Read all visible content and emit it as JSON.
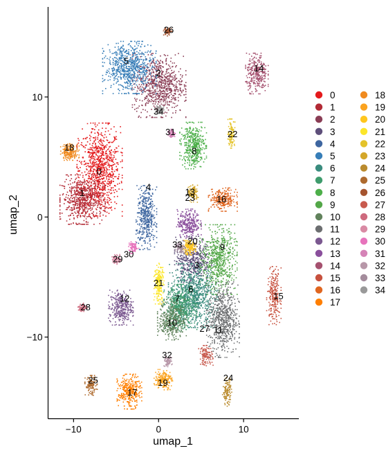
{
  "chart_data": {
    "type": "scatter",
    "title": "",
    "xlabel": "umap_1",
    "ylabel": "umap_2",
    "xlim": [
      -13,
      16.5
    ],
    "ylim": [
      -16.8,
      17.5
    ],
    "xticks": [
      -10,
      0,
      10
    ],
    "yticks": [
      -10,
      0,
      10
    ],
    "xtick_labels": [
      "−10",
      "0",
      "10"
    ],
    "ytick_labels": [
      "−10",
      "0",
      "10"
    ],
    "grid": false,
    "legend_position": "right",
    "clusters": [
      {
        "name": "0",
        "color": "#E41A1C",
        "center": [
          -7,
          4
        ],
        "spread": [
          2.2,
          3.2
        ],
        "n": 900
      },
      {
        "name": "1",
        "color": "#B22A35",
        "center": [
          -9,
          1.5
        ],
        "spread": [
          2.2,
          1.7
        ],
        "n": 600
      },
      {
        "name": "2",
        "color": "#8A3D55",
        "center": [
          0,
          11
        ],
        "spread": [
          2.6,
          2.2
        ],
        "n": 750
      },
      {
        "name": "3",
        "color": "#5E4F7A",
        "center": [
          4,
          -3.5
        ],
        "spread": [
          1.8,
          1.6
        ],
        "n": 450
      },
      {
        "name": "4",
        "color": "#3E66A0",
        "center": [
          -1.5,
          0
        ],
        "spread": [
          1.0,
          2.2
        ],
        "n": 420
      },
      {
        "name": "5",
        "color": "#377EB8",
        "center": [
          -3.5,
          12.5
        ],
        "spread": [
          2.6,
          1.8
        ],
        "n": 700
      },
      {
        "name": "6",
        "color": "#3A8C7E",
        "center": [
          4,
          -6.5
        ],
        "spread": [
          2.4,
          2.2
        ],
        "n": 850
      },
      {
        "name": "7",
        "color": "#3F9C6D",
        "center": [
          2.5,
          -7.5
        ],
        "spread": [
          1.6,
          1.6
        ],
        "n": 450
      },
      {
        "name": "8",
        "color": "#4DAF4A",
        "center": [
          4,
          6
        ],
        "spread": [
          1.3,
          1.6
        ],
        "n": 420
      },
      {
        "name": "9",
        "color": "#53A748",
        "center": [
          7,
          -3.5
        ],
        "spread": [
          1.8,
          2.4
        ],
        "n": 600
      },
      {
        "name": "10",
        "color": "#61825C",
        "center": [
          1.5,
          -8.5
        ],
        "spread": [
          1.4,
          1.4
        ],
        "n": 380
      },
      {
        "name": "11",
        "color": "#6C6E70",
        "center": [
          7.5,
          -8.5
        ],
        "spread": [
          1.6,
          2.6
        ],
        "n": 650
      },
      {
        "name": "12",
        "color": "#7B5890",
        "center": [
          -4.5,
          -7.5
        ],
        "spread": [
          1.2,
          1.2
        ],
        "n": 330
      },
      {
        "name": "13",
        "color": "#8A4F9C",
        "center": [
          3.5,
          -0.5
        ],
        "spread": [
          1.2,
          1.0
        ],
        "n": 280
      },
      {
        "name": "14",
        "color": "#A5516F",
        "center": [
          11.5,
          12
        ],
        "spread": [
          1.1,
          1.4
        ],
        "n": 300
      },
      {
        "name": "15",
        "color": "#C7513E",
        "center": [
          13.5,
          -6.5
        ],
        "spread": [
          0.7,
          2.0
        ],
        "n": 230
      },
      {
        "name": "16",
        "color": "#E06620",
        "center": [
          7.5,
          1.5
        ],
        "spread": [
          1.4,
          0.8
        ],
        "n": 250
      },
      {
        "name": "17",
        "color": "#FF7F00",
        "center": [
          -3.5,
          -14.5
        ],
        "spread": [
          1.2,
          1.2
        ],
        "n": 320
      },
      {
        "name": "18",
        "color": "#F08B20",
        "center": [
          -10.5,
          5.5
        ],
        "spread": [
          0.9,
          0.6
        ],
        "n": 200
      },
      {
        "name": "19",
        "color": "#FBA31F",
        "center": [
          0.5,
          -13.5
        ],
        "spread": [
          0.9,
          0.7
        ],
        "n": 180
      },
      {
        "name": "20",
        "color": "#FFC61E",
        "center": [
          3.5,
          -2.5
        ],
        "spread": [
          0.7,
          0.5
        ],
        "n": 150
      },
      {
        "name": "21",
        "color": "#FCE62A",
        "center": [
          0,
          -5.5
        ],
        "spread": [
          0.5,
          1.4
        ],
        "n": 200
      },
      {
        "name": "22",
        "color": "#E4C32A",
        "center": [
          8.5,
          7
        ],
        "spread": [
          0.35,
          1.0
        ],
        "n": 120
      },
      {
        "name": "23",
        "color": "#D4A72A",
        "center": [
          4,
          2
        ],
        "spread": [
          0.5,
          0.6
        ],
        "n": 110
      },
      {
        "name": "24",
        "color": "#BA8B2E",
        "center": [
          8,
          -14.5
        ],
        "spread": [
          0.45,
          1.0
        ],
        "n": 120
      },
      {
        "name": "25",
        "color": "#AE6A2E",
        "center": [
          -8,
          -14
        ],
        "spread": [
          0.6,
          0.7
        ],
        "n": 110
      },
      {
        "name": "26",
        "color": "#A5542F",
        "center": [
          1,
          15.5
        ],
        "spread": [
          0.4,
          0.3
        ],
        "n": 70
      },
      {
        "name": "27",
        "color": "#C85A4E",
        "center": [
          5.5,
          -11.5
        ],
        "spread": [
          0.7,
          0.7
        ],
        "n": 120
      },
      {
        "name": "28",
        "color": "#CE6A7E",
        "center": [
          -9,
          -7.5
        ],
        "spread": [
          0.45,
          0.3
        ],
        "n": 70
      },
      {
        "name": "29",
        "color": "#D98AA4",
        "center": [
          -5,
          -3.5
        ],
        "spread": [
          0.45,
          0.35
        ],
        "n": 70
      },
      {
        "name": "30",
        "color": "#E773BC",
        "center": [
          -3,
          -2.5
        ],
        "spread": [
          0.5,
          0.4
        ],
        "n": 80
      },
      {
        "name": "31",
        "color": "#D583B7",
        "center": [
          1.5,
          7
        ],
        "spread": [
          0.35,
          0.3
        ],
        "n": 60
      },
      {
        "name": "32",
        "color": "#B797A8",
        "center": [
          1,
          -12
        ],
        "spread": [
          0.45,
          0.35
        ],
        "n": 70
      },
      {
        "name": "33",
        "color": "#A48C9C",
        "center": [
          2.5,
          -2.5
        ],
        "spread": [
          0.5,
          0.4
        ],
        "n": 70
      },
      {
        "name": "34",
        "color": "#999999",
        "center": [
          0,
          9
        ],
        "spread": [
          0.45,
          0.35
        ],
        "n": 70
      }
    ],
    "point_labels": [
      {
        "text": "0",
        "x": -7,
        "y": 3.8
      },
      {
        "text": "1",
        "x": -9,
        "y": 2
      },
      {
        "text": "2",
        "x": 0,
        "y": 12
      },
      {
        "text": "3",
        "x": 4.5,
        "y": -4
      },
      {
        "text": "4",
        "x": -1.2,
        "y": 2.5
      },
      {
        "text": "5",
        "x": -3.8,
        "y": 13
      },
      {
        "text": "6",
        "x": 3.8,
        "y": -6
      },
      {
        "text": "7",
        "x": 2.2,
        "y": -6.8
      },
      {
        "text": "8",
        "x": 4.2,
        "y": 5.5
      },
      {
        "text": "9",
        "x": 7.5,
        "y": -2.5
      },
      {
        "text": "10",
        "x": 1.6,
        "y": -8.8
      },
      {
        "text": "11",
        "x": 7,
        "y": -9.4
      },
      {
        "text": "12",
        "x": -4,
        "y": -6.8
      },
      {
        "text": "13",
        "x": 3.7,
        "y": 2.1
      },
      {
        "text": "14",
        "x": 11.8,
        "y": 12.4
      },
      {
        "text": "15",
        "x": 14.1,
        "y": -6.6
      },
      {
        "text": "16",
        "x": 7.4,
        "y": 1.5
      },
      {
        "text": "17",
        "x": -3.1,
        "y": -14.6
      },
      {
        "text": "18",
        "x": -10.5,
        "y": 5.8
      },
      {
        "text": "19",
        "x": 0.5,
        "y": -13.8
      },
      {
        "text": "20",
        "x": 4,
        "y": -2
      },
      {
        "text": "21",
        "x": 0,
        "y": -5.5
      },
      {
        "text": "22",
        "x": 8.7,
        "y": 6.9
      },
      {
        "text": "23",
        "x": 3.7,
        "y": 1.6
      },
      {
        "text": "24",
        "x": 8.2,
        "y": -13.4
      },
      {
        "text": "25",
        "x": -7.7,
        "y": -13.6
      },
      {
        "text": "26",
        "x": 1.2,
        "y": 15.6
      },
      {
        "text": "27",
        "x": 5.4,
        "y": -9.3
      },
      {
        "text": "28",
        "x": -8.6,
        "y": -7.5
      },
      {
        "text": "29",
        "x": -4.8,
        "y": -3.5
      },
      {
        "text": "30",
        "x": -3.5,
        "y": -3.1
      },
      {
        "text": "31",
        "x": 1.4,
        "y": 7.1
      },
      {
        "text": "32",
        "x": 1,
        "y": -11.5
      },
      {
        "text": "33",
        "x": 2.2,
        "y": -2.3
      },
      {
        "text": "34",
        "x": 0,
        "y": 8.8
      }
    ]
  }
}
